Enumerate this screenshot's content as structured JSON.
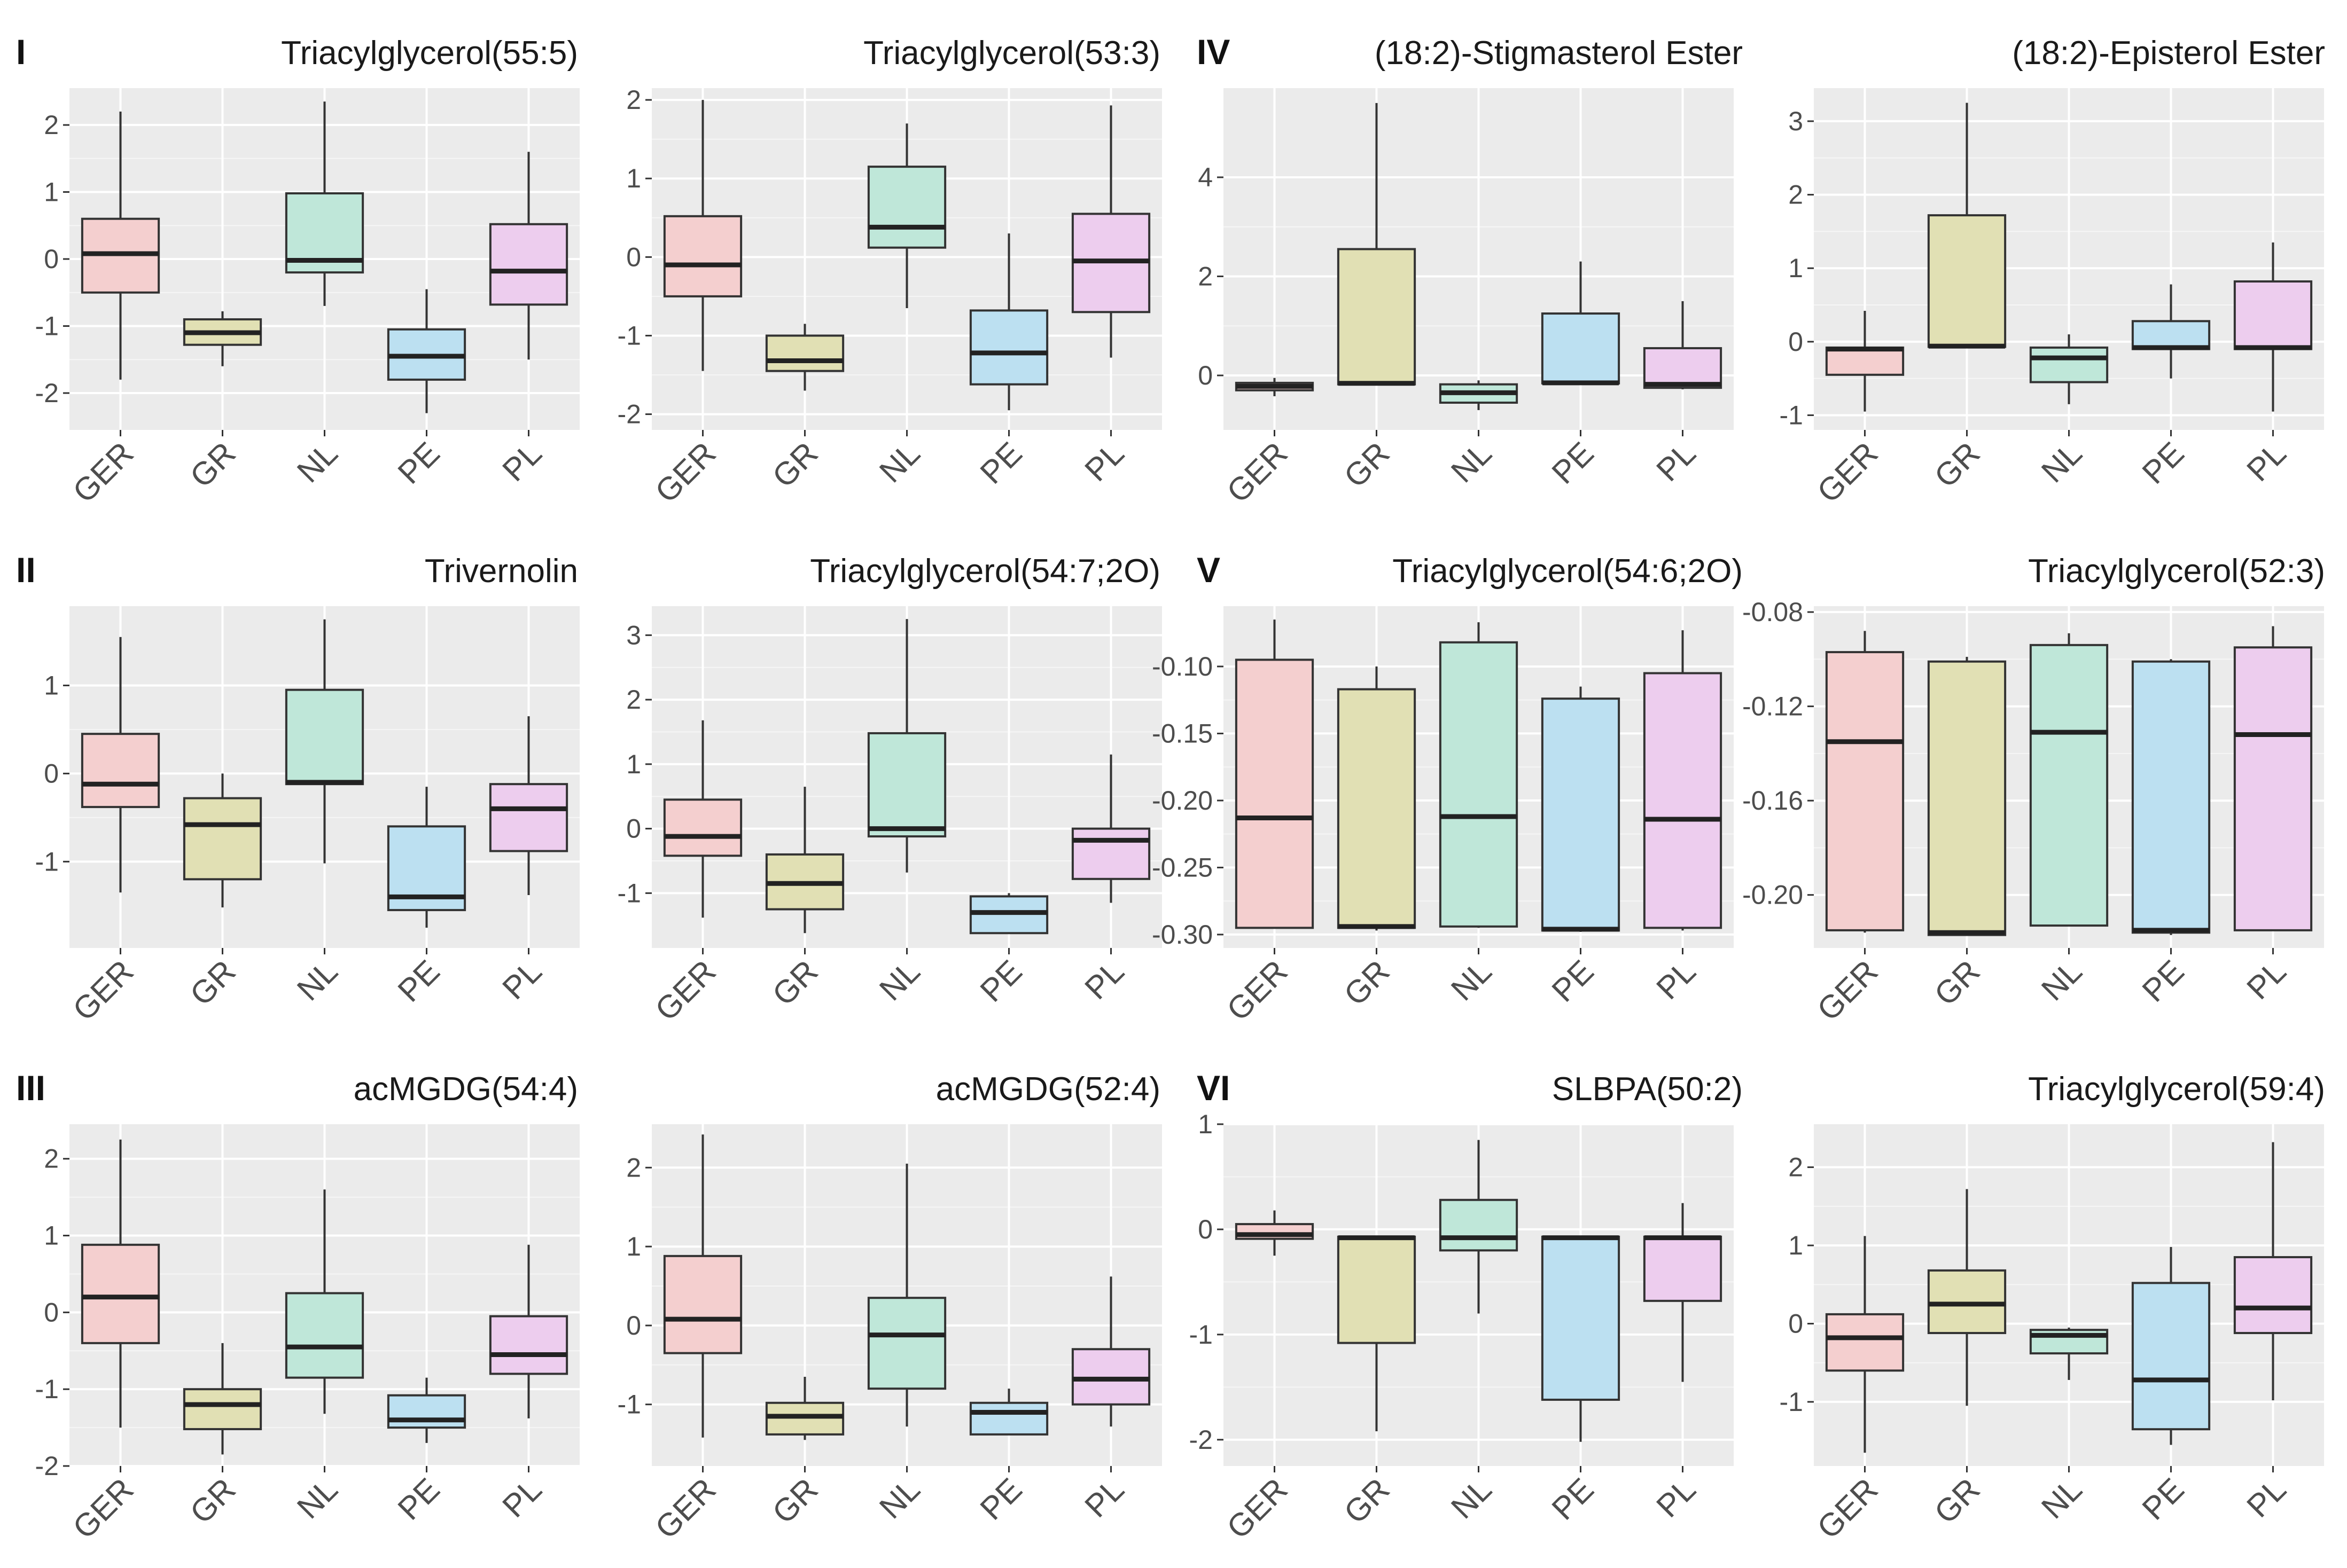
{
  "colors": {
    "panel_bg": "#EBEBEB",
    "grid": "#FFFFFF",
    "GER": "#F4CFCF",
    "GR": "#E1E0B4",
    "NL": "#BFE7D9",
    "PE": "#BCE0F1",
    "PL": "#EDCDEE",
    "line": "#333333"
  },
  "chart_data": [
    {
      "type": "box",
      "group_label": "I",
      "title": "Triacylglycerol(55:5)",
      "categories": [
        "GER",
        "GR",
        "NL",
        "PE",
        "PL"
      ],
      "yticks": [
        -2,
        -1,
        0,
        1,
        2
      ],
      "ytick_labels": [
        "-2",
        "-1",
        "0",
        "1",
        "2"
      ],
      "ylim": [
        -2.55,
        2.55
      ],
      "boxes": [
        {
          "whislo": -1.8,
          "q1": -0.5,
          "med": 0.08,
          "q3": 0.6,
          "whishi": 2.2
        },
        {
          "whislo": -1.6,
          "q1": -1.28,
          "med": -1.1,
          "q3": -0.9,
          "whishi": -0.78
        },
        {
          "whislo": -0.7,
          "q1": -0.2,
          "med": -0.02,
          "q3": 0.98,
          "whishi": 2.35
        },
        {
          "whislo": -2.3,
          "q1": -1.8,
          "med": -1.45,
          "q3": -1.05,
          "whishi": -0.45
        },
        {
          "whislo": -1.5,
          "q1": -0.68,
          "med": -0.18,
          "q3": 0.52,
          "whishi": 1.6
        }
      ]
    },
    {
      "type": "box",
      "group_label": "",
      "title": "Triacylglycerol(53:3)",
      "categories": [
        "GER",
        "GR",
        "NL",
        "PE",
        "PL"
      ],
      "yticks": [
        -2,
        -1,
        0,
        1,
        2
      ],
      "ytick_labels": [
        "-2",
        "-1",
        "0",
        "1",
        "2"
      ],
      "ylim": [
        -2.2,
        2.15
      ],
      "boxes": [
        {
          "whislo": -1.45,
          "q1": -0.5,
          "med": -0.1,
          "q3": 0.52,
          "whishi": 2.0
        },
        {
          "whislo": -1.7,
          "q1": -1.45,
          "med": -1.32,
          "q3": -1.0,
          "whishi": -0.85
        },
        {
          "whislo": -0.65,
          "q1": 0.12,
          "med": 0.38,
          "q3": 1.15,
          "whishi": 1.7
        },
        {
          "whislo": -1.95,
          "q1": -1.62,
          "med": -1.22,
          "q3": -0.68,
          "whishi": 0.3
        },
        {
          "whislo": -1.28,
          "q1": -0.7,
          "med": -0.05,
          "q3": 0.55,
          "whishi": 1.93
        }
      ]
    },
    {
      "type": "box",
      "group_label": "IV",
      "title": "(18:2)-Stigmasterol Ester",
      "categories": [
        "GER",
        "GR",
        "NL",
        "PE",
        "PL"
      ],
      "yticks": [
        0,
        2,
        4
      ],
      "ytick_labels": [
        "0",
        "2",
        "4"
      ],
      "ylim": [
        -1.1,
        5.8
      ],
      "boxes": [
        {
          "whislo": -0.42,
          "q1": -0.3,
          "med": -0.22,
          "q3": -0.15,
          "whishi": -0.05
        },
        {
          "whislo": -0.2,
          "q1": -0.18,
          "med": -0.16,
          "q3": 2.55,
          "whishi": 5.5
        },
        {
          "whislo": -0.7,
          "q1": -0.55,
          "med": -0.35,
          "q3": -0.18,
          "whishi": -0.1
        },
        {
          "whislo": -0.18,
          "q1": -0.16,
          "med": -0.15,
          "q3": 1.25,
          "whishi": 2.3
        },
        {
          "whislo": -0.28,
          "q1": -0.25,
          "med": -0.18,
          "q3": 0.55,
          "whishi": 1.5
        }
      ]
    },
    {
      "type": "box",
      "group_label": "",
      "title": "(18:2)-Episterol Ester",
      "categories": [
        "GER",
        "GR",
        "NL",
        "PE",
        "PL"
      ],
      "yticks": [
        -1,
        0,
        1,
        2,
        3
      ],
      "ytick_labels": [
        "-1",
        "0",
        "1",
        "2",
        "3"
      ],
      "ylim": [
        -1.2,
        3.45
      ],
      "boxes": [
        {
          "whislo": -0.95,
          "q1": -0.45,
          "med": -0.1,
          "q3": -0.08,
          "whishi": 0.42
        },
        {
          "whislo": -0.08,
          "q1": -0.07,
          "med": -0.06,
          "q3": 1.72,
          "whishi": 3.25
        },
        {
          "whislo": -0.85,
          "q1": -0.55,
          "med": -0.22,
          "q3": -0.08,
          "whishi": 0.1
        },
        {
          "whislo": -0.5,
          "q1": -0.1,
          "med": -0.08,
          "q3": 0.28,
          "whishi": 0.78
        },
        {
          "whislo": -0.95,
          "q1": -0.1,
          "med": -0.08,
          "q3": 0.82,
          "whishi": 1.35
        }
      ]
    },
    {
      "type": "box",
      "group_label": "II",
      "title": "Trivernolin",
      "categories": [
        "GER",
        "GR",
        "NL",
        "PE",
        "PL"
      ],
      "yticks": [
        -1,
        0,
        1
      ],
      "ytick_labels": [
        "-1",
        "0",
        "1"
      ],
      "ylim": [
        -1.98,
        1.9
      ],
      "boxes": [
        {
          "whislo": -1.35,
          "q1": -0.38,
          "med": -0.12,
          "q3": 0.45,
          "whishi": 1.55
        },
        {
          "whislo": -1.52,
          "q1": -1.2,
          "med": -0.58,
          "q3": -0.28,
          "whishi": 0.0
        },
        {
          "whislo": -1.02,
          "q1": -0.12,
          "med": -0.1,
          "q3": 0.95,
          "whishi": 1.75
        },
        {
          "whislo": -1.75,
          "q1": -1.55,
          "med": -1.4,
          "q3": -0.6,
          "whishi": -0.15
        },
        {
          "whislo": -1.38,
          "q1": -0.88,
          "med": -0.4,
          "q3": -0.12,
          "whishi": 0.65
        }
      ]
    },
    {
      "type": "box",
      "group_label": "",
      "title": "Triacylglycerol(54:7;2O)",
      "categories": [
        "GER",
        "GR",
        "NL",
        "PE",
        "PL"
      ],
      "yticks": [
        -1,
        0,
        1,
        2,
        3
      ],
      "ytick_labels": [
        "-1",
        "0",
        "1",
        "2",
        "3"
      ],
      "ylim": [
        -1.85,
        3.45
      ],
      "boxes": [
        {
          "whislo": -1.38,
          "q1": -0.42,
          "med": -0.12,
          "q3": 0.45,
          "whishi": 1.68
        },
        {
          "whislo": -1.62,
          "q1": -1.25,
          "med": -0.85,
          "q3": -0.4,
          "whishi": 0.65
        },
        {
          "whislo": -0.68,
          "q1": -0.12,
          "med": 0.0,
          "q3": 1.48,
          "whishi": 3.25
        },
        {
          "whislo": -1.62,
          "q1": -1.62,
          "med": -1.3,
          "q3": -1.05,
          "whishi": -1.0
        },
        {
          "whislo": -1.15,
          "q1": -0.78,
          "med": -0.18,
          "q3": 0.0,
          "whishi": 1.15
        }
      ]
    },
    {
      "type": "box",
      "group_label": "V",
      "title": "Triacylglycerol(54:6;2O)",
      "categories": [
        "GER",
        "GR",
        "NL",
        "PE",
        "PL"
      ],
      "yticks": [
        -0.3,
        -0.25,
        -0.2,
        -0.15,
        -0.1
      ],
      "ytick_labels": [
        "-0.30",
        "-0.25",
        "-0.20",
        "-0.15",
        "-0.10"
      ],
      "ylim": [
        -0.31,
        -0.055
      ],
      "boxes": [
        {
          "whislo": -0.295,
          "q1": -0.295,
          "med": -0.213,
          "q3": -0.095,
          "whishi": -0.065
        },
        {
          "whislo": -0.297,
          "q1": -0.295,
          "med": -0.294,
          "q3": -0.117,
          "whishi": -0.1
        },
        {
          "whislo": -0.295,
          "q1": -0.294,
          "med": -0.212,
          "q3": -0.082,
          "whishi": -0.067
        },
        {
          "whislo": -0.298,
          "q1": -0.297,
          "med": -0.296,
          "q3": -0.124,
          "whishi": -0.115
        },
        {
          "whislo": -0.297,
          "q1": -0.295,
          "med": -0.214,
          "q3": -0.105,
          "whishi": -0.073
        }
      ]
    },
    {
      "type": "box",
      "group_label": "",
      "title": "Triacylglycerol(52:3)",
      "categories": [
        "GER",
        "GR",
        "NL",
        "PE",
        "PL"
      ],
      "yticks": [
        -0.2,
        -0.16,
        -0.12,
        -0.08
      ],
      "ytick_labels": [
        "-0.20",
        "-0.16",
        "-0.12",
        "-0.08"
      ],
      "ylim": [
        -0.2225,
        -0.0775
      ],
      "boxes": [
        {
          "whislo": -0.216,
          "q1": -0.215,
          "med": -0.135,
          "q3": -0.097,
          "whishi": -0.088
        },
        {
          "whislo": -0.217,
          "q1": -0.217,
          "med": -0.216,
          "q3": -0.101,
          "whishi": -0.099
        },
        {
          "whislo": -0.213,
          "q1": -0.213,
          "med": -0.131,
          "q3": -0.094,
          "whishi": -0.089
        },
        {
          "whislo": -0.217,
          "q1": -0.216,
          "med": -0.215,
          "q3": -0.101,
          "whishi": -0.1
        },
        {
          "whislo": -0.215,
          "q1": -0.215,
          "med": -0.132,
          "q3": -0.095,
          "whishi": -0.086
        }
      ]
    },
    {
      "type": "box",
      "group_label": "III",
      "title": "acMGDG(54:4)",
      "categories": [
        "GER",
        "GR",
        "NL",
        "PE",
        "PL"
      ],
      "yticks": [
        -2,
        -1,
        0,
        1,
        2
      ],
      "ytick_labels": [
        "-2",
        "-1",
        "0",
        "1",
        "2"
      ],
      "ylim": [
        -2.0,
        2.45
      ],
      "boxes": [
        {
          "whislo": -1.5,
          "q1": -0.4,
          "med": 0.2,
          "q3": 0.88,
          "whishi": 2.25
        },
        {
          "whislo": -1.85,
          "q1": -1.52,
          "med": -1.2,
          "q3": -1.0,
          "whishi": -0.4
        },
        {
          "whislo": -1.32,
          "q1": -0.85,
          "med": -0.45,
          "q3": 0.25,
          "whishi": 1.6
        },
        {
          "whislo": -1.7,
          "q1": -1.5,
          "med": -1.4,
          "q3": -1.08,
          "whishi": -0.85
        },
        {
          "whislo": -1.38,
          "q1": -0.8,
          "med": -0.55,
          "q3": -0.05,
          "whishi": 0.88
        }
      ]
    },
    {
      "type": "box",
      "group_label": "",
      "title": "acMGDG(52:4)",
      "categories": [
        "GER",
        "GR",
        "NL",
        "PE",
        "PL"
      ],
      "yticks": [
        -1,
        0,
        1,
        2
      ],
      "ytick_labels": [
        "-1",
        "0",
        "1",
        "2"
      ],
      "ylim": [
        -1.78,
        2.55
      ],
      "boxes": [
        {
          "whislo": -1.42,
          "q1": -0.35,
          "med": 0.08,
          "q3": 0.88,
          "whishi": 2.42
        },
        {
          "whislo": -1.45,
          "q1": -1.38,
          "med": -1.15,
          "q3": -0.98,
          "whishi": -0.65
        },
        {
          "whislo": -1.28,
          "q1": -0.8,
          "med": -0.12,
          "q3": 0.35,
          "whishi": 2.05
        },
        {
          "whislo": -1.38,
          "q1": -1.38,
          "med": -1.1,
          "q3": -0.98,
          "whishi": -0.8
        },
        {
          "whislo": -1.28,
          "q1": -1.0,
          "med": -0.68,
          "q3": -0.3,
          "whishi": 0.62
        }
      ]
    },
    {
      "type": "box",
      "group_label": "VI",
      "title": "SLBPA(50:2)",
      "categories": [
        "GER",
        "GR",
        "NL",
        "PE",
        "PL"
      ],
      "yticks": [
        -2,
        -1,
        0,
        1
      ],
      "ytick_labels": [
        "-2",
        "-1",
        "0",
        "1"
      ],
      "ylim": [
        -2.25,
        1.0
      ],
      "boxes": [
        {
          "whislo": -0.25,
          "q1": -0.09,
          "med": -0.05,
          "q3": 0.05,
          "whishi": 0.18
        },
        {
          "whislo": -1.92,
          "q1": -1.08,
          "med": -0.08,
          "q3": -0.07,
          "whishi": -0.06
        },
        {
          "whislo": -0.8,
          "q1": -0.2,
          "med": -0.08,
          "q3": 0.28,
          "whishi": 0.85
        },
        {
          "whislo": -2.02,
          "q1": -1.62,
          "med": -0.08,
          "q3": -0.07,
          "whishi": -0.06
        },
        {
          "whislo": -1.45,
          "q1": -0.68,
          "med": -0.08,
          "q3": -0.07,
          "whishi": 0.25
        }
      ]
    },
    {
      "type": "box",
      "group_label": "",
      "title": "Triacylglycerol(59:4)",
      "categories": [
        "GER",
        "GR",
        "NL",
        "PE",
        "PL"
      ],
      "yticks": [
        -1,
        0,
        1,
        2
      ],
      "ytick_labels": [
        "-1",
        "0",
        "1",
        "2"
      ],
      "ylim": [
        -1.82,
        2.55
      ],
      "boxes": [
        {
          "whislo": -1.65,
          "q1": -0.6,
          "med": -0.18,
          "q3": 0.12,
          "whishi": 1.12
        },
        {
          "whislo": -1.05,
          "q1": -0.12,
          "med": 0.25,
          "q3": 0.68,
          "whishi": 1.72
        },
        {
          "whislo": -0.72,
          "q1": -0.38,
          "med": -0.15,
          "q3": -0.08,
          "whishi": -0.05
        },
        {
          "whislo": -1.55,
          "q1": -1.35,
          "med": -0.72,
          "q3": 0.52,
          "whishi": 0.98
        },
        {
          "whislo": -0.98,
          "q1": -0.12,
          "med": 0.2,
          "q3": 0.85,
          "whishi": 2.32
        }
      ]
    }
  ]
}
